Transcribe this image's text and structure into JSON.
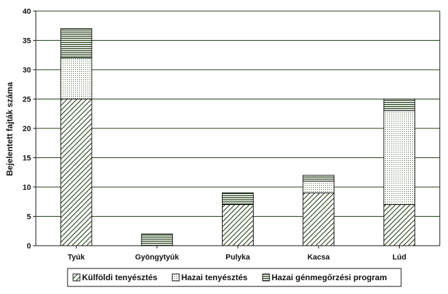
{
  "chart_data": {
    "type": "bar",
    "stacked": true,
    "categories": [
      "Tyúk",
      "Gyöngytyúk",
      "Pulyka",
      "Kacsa",
      "Lúd"
    ],
    "series": [
      {
        "name": "Külföldi tenyésztés",
        "values": [
          25,
          0,
          7,
          9,
          7
        ],
        "pattern": "diagonal-hatch"
      },
      {
        "name": "Hazai tenyésztés",
        "values": [
          7,
          0,
          0,
          2,
          16
        ],
        "pattern": "dots"
      },
      {
        "name": "Hazai génmegőrzési program",
        "values": [
          5,
          2,
          2,
          1,
          2
        ],
        "pattern": "horizontal-lines"
      }
    ],
    "title": "",
    "xlabel": "",
    "ylabel": "Bejelentett fajták száma",
    "ylim": [
      0,
      40
    ],
    "yticks": [
      0,
      5,
      10,
      15,
      20,
      25,
      30,
      35,
      40
    ],
    "grid": "horizontal",
    "legend_position": "bottom",
    "colors": {
      "ink": "#1f3a12",
      "grid": "#1f3a12",
      "axis": "#111111"
    }
  }
}
